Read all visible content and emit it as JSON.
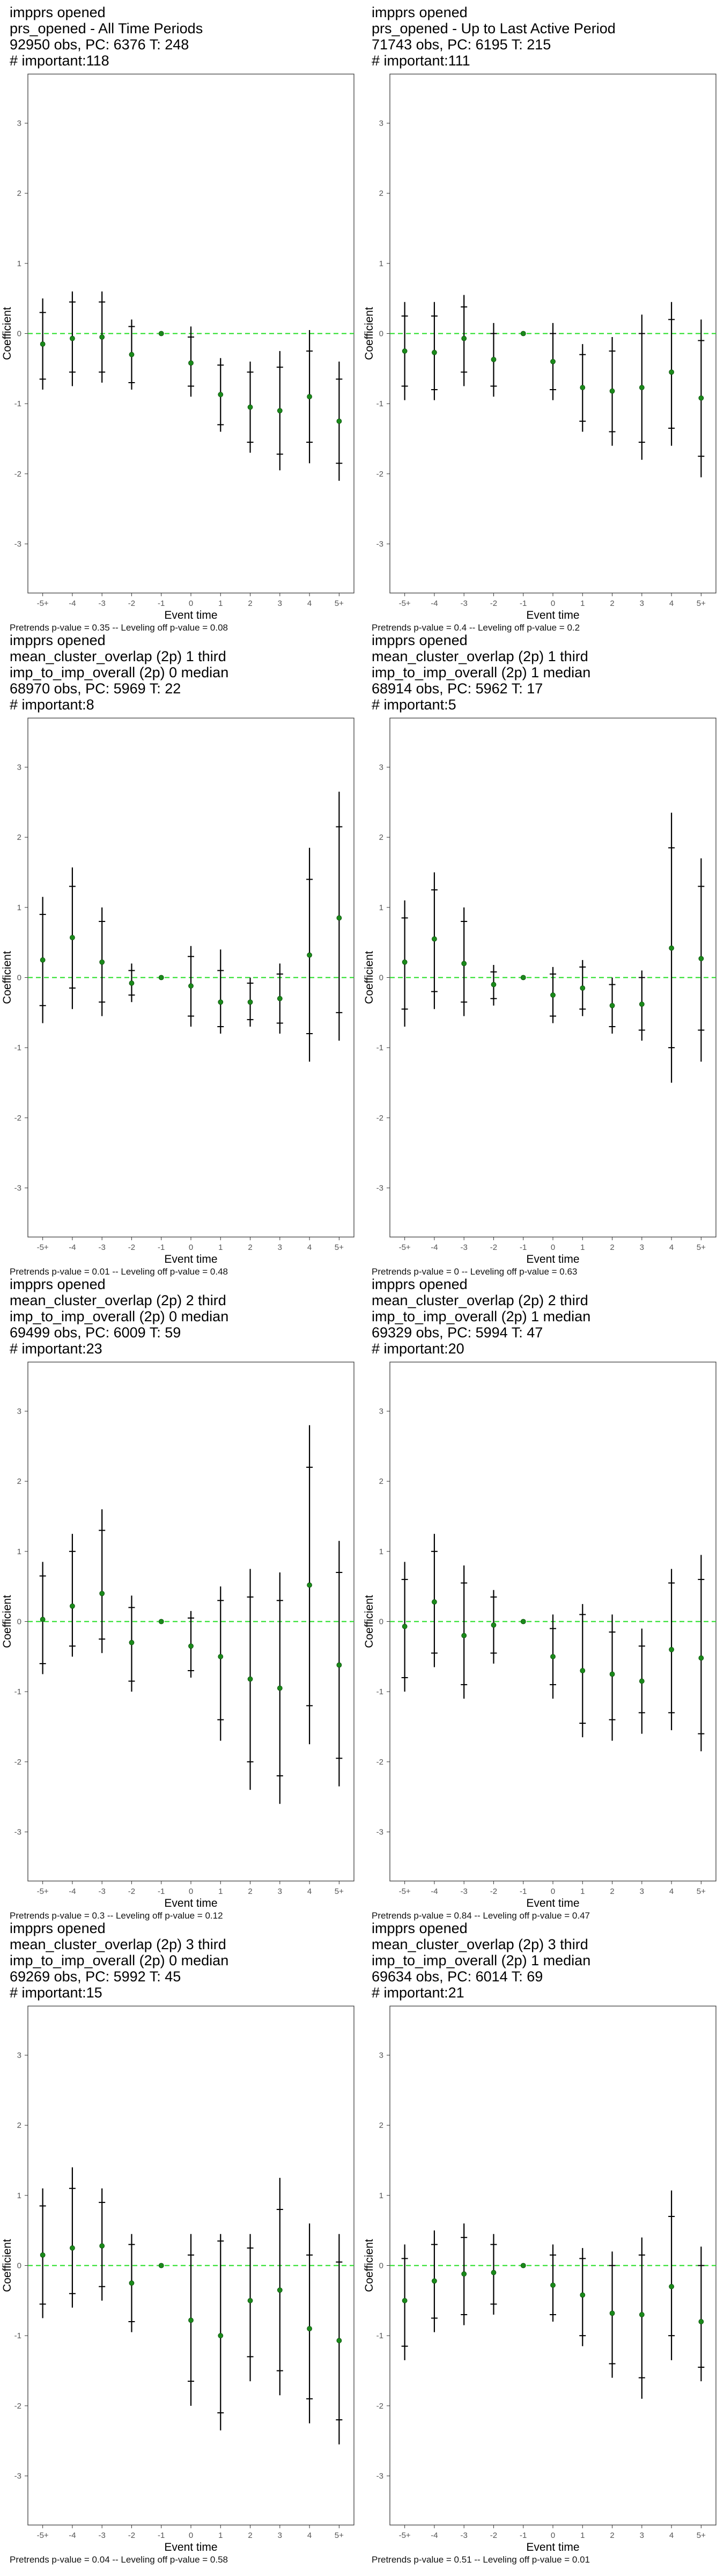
{
  "colors": {
    "point": "#1a8a1a",
    "zero_line": "#22dd22",
    "bar": "#000000",
    "frame": "#333333",
    "tick_text": "#555555"
  },
  "chart_data": [
    {
      "type": "scatter",
      "title": [
        "impprs opened",
        "prs_opened - All Time Periods",
        "92950 obs, PC: 6376 T: 248",
        "# important:118"
      ],
      "footer": "Pretrends p-value = 0.35 -- Leveling off p-value = 0.08",
      "xlabel": "Event time",
      "ylabel": "Coefficient",
      "categories": [
        "-5+",
        "-4",
        "-3",
        "-2",
        "-1",
        "0",
        "1",
        "2",
        "3",
        "4",
        "5+"
      ],
      "yticks": [
        "3",
        "2",
        "1",
        "0",
        "-1",
        "-2",
        "-3"
      ],
      "ylim": [
        -3.7,
        3.7
      ],
      "values": [
        -0.15,
        -0.07,
        -0.05,
        -0.3,
        0,
        -0.42,
        -0.87,
        -1.05,
        -1.1,
        -0.9,
        -1.25
      ],
      "ci95": [
        [
          -0.8,
          0.5
        ],
        [
          -0.75,
          0.6
        ],
        [
          -0.7,
          0.6
        ],
        [
          -0.8,
          0.2
        ],
        [
          0,
          0
        ],
        [
          -0.9,
          0.1
        ],
        [
          -1.4,
          -0.35
        ],
        [
          -1.7,
          -0.4
        ],
        [
          -1.95,
          -0.25
        ],
        [
          -1.85,
          0.05
        ],
        [
          -2.1,
          -0.4
        ]
      ],
      "ci90": [
        [
          -0.65,
          0.3
        ],
        [
          -0.55,
          0.45
        ],
        [
          -0.55,
          0.45
        ],
        [
          -0.7,
          0.1
        ],
        [
          0,
          0
        ],
        [
          -0.75,
          -0.05
        ],
        [
          -1.3,
          -0.45
        ],
        [
          -1.55,
          -0.55
        ],
        [
          -1.72,
          -0.48
        ],
        [
          -1.55,
          -0.25
        ],
        [
          -1.85,
          -0.65
        ]
      ]
    },
    {
      "type": "scatter",
      "title": [
        "impprs opened",
        "prs_opened - Up to Last Active Period",
        "71743 obs, PC: 6195 T: 215",
        "# important:111"
      ],
      "footer": "Pretrends p-value = 0.4 -- Leveling off p-value = 0.2",
      "xlabel": "Event time",
      "ylabel": "Coefficient",
      "categories": [
        "-5+",
        "-4",
        "-3",
        "-2",
        "-1",
        "0",
        "1",
        "2",
        "3",
        "4",
        "5+"
      ],
      "yticks": [
        "3",
        "2",
        "1",
        "0",
        "-1",
        "-2",
        "-3"
      ],
      "ylim": [
        -3.7,
        3.7
      ],
      "values": [
        -0.25,
        -0.27,
        -0.07,
        -0.37,
        0,
        -0.4,
        -0.77,
        -0.82,
        -0.77,
        -0.55,
        -0.92
      ],
      "ci95": [
        [
          -0.95,
          0.45
        ],
        [
          -0.95,
          0.45
        ],
        [
          -0.75,
          0.55
        ],
        [
          -0.9,
          0.15
        ],
        [
          0,
          0
        ],
        [
          -0.95,
          0.15
        ],
        [
          -1.4,
          -0.15
        ],
        [
          -1.6,
          -0.05
        ],
        [
          -1.8,
          0.27
        ],
        [
          -1.6,
          0.45
        ],
        [
          -2.05,
          0.2
        ]
      ],
      "ci90": [
        [
          -0.75,
          0.25
        ],
        [
          -0.8,
          0.25
        ],
        [
          -0.55,
          0.38
        ],
        [
          -0.75,
          0.0
        ],
        [
          0,
          0
        ],
        [
          -0.8,
          -0.0
        ],
        [
          -1.25,
          -0.3
        ],
        [
          -1.4,
          -0.25
        ],
        [
          -1.55,
          0.0
        ],
        [
          -1.35,
          0.2
        ],
        [
          -1.75,
          -0.1
        ]
      ]
    },
    {
      "type": "scatter",
      "title": [
        "impprs opened",
        "mean_cluster_overlap (2p) 1 third",
        "imp_to_imp_overall (2p) 0 median",
        "68970 obs, PC: 5969 T: 22",
        "# important:8"
      ],
      "footer": "Pretrends p-value = 0.01 -- Leveling off p-value = 0.48",
      "xlabel": "Event time",
      "ylabel": "Coefficient",
      "categories": [
        "-5+",
        "-4",
        "-3",
        "-2",
        "-1",
        "0",
        "1",
        "2",
        "3",
        "4",
        "5+"
      ],
      "yticks": [
        "3",
        "2",
        "1",
        "0",
        "-1",
        "-2",
        "-3"
      ],
      "ylim": [
        -3.7,
        3.7
      ],
      "values": [
        0.25,
        0.57,
        0.22,
        -0.08,
        0,
        -0.12,
        -0.35,
        -0.35,
        -0.3,
        0.32,
        0.85
      ],
      "ci95": [
        [
          -0.65,
          1.15
        ],
        [
          -0.45,
          1.57
        ],
        [
          -0.55,
          1.0
        ],
        [
          -0.35,
          0.2
        ],
        [
          0,
          0
        ],
        [
          -0.7,
          0.45
        ],
        [
          -0.8,
          0.4
        ],
        [
          -0.7,
          0.0
        ],
        [
          -0.8,
          0.2
        ],
        [
          -1.2,
          1.85
        ],
        [
          -0.9,
          2.65
        ]
      ],
      "ci90": [
        [
          -0.4,
          0.9
        ],
        [
          -0.15,
          1.3
        ],
        [
          -0.35,
          0.8
        ],
        [
          -0.25,
          0.1
        ],
        [
          0,
          0
        ],
        [
          -0.55,
          0.3
        ],
        [
          -0.7,
          0.1
        ],
        [
          -0.6,
          -0.08
        ],
        [
          -0.65,
          0.05
        ],
        [
          -0.8,
          1.4
        ],
        [
          -0.5,
          2.15
        ]
      ]
    },
    {
      "type": "scatter",
      "title": [
        "impprs opened",
        "mean_cluster_overlap (2p) 1 third",
        "imp_to_imp_overall (2p) 1 median",
        "68914 obs, PC: 5962 T: 17",
        "# important:5"
      ],
      "footer": "Pretrends p-value = 0 -- Leveling off p-value = 0.63",
      "xlabel": "Event time",
      "ylabel": "Coefficient",
      "categories": [
        "-5+",
        "-4",
        "-3",
        "-2",
        "-1",
        "0",
        "1",
        "2",
        "3",
        "4",
        "5+"
      ],
      "yticks": [
        "3",
        "2",
        "1",
        "0",
        "-1",
        "-2",
        "-3"
      ],
      "ylim": [
        -3.7,
        3.7
      ],
      "values": [
        0.22,
        0.55,
        0.2,
        -0.1,
        0,
        -0.25,
        -0.15,
        -0.4,
        -0.38,
        0.42,
        0.27
      ],
      "ci95": [
        [
          -0.7,
          1.1
        ],
        [
          -0.45,
          1.5
        ],
        [
          -0.55,
          1.0
        ],
        [
          -0.4,
          0.18
        ],
        [
          0,
          0
        ],
        [
          -0.65,
          0.15
        ],
        [
          -0.55,
          0.25
        ],
        [
          -0.8,
          0.0
        ],
        [
          -0.9,
          0.1
        ],
        [
          -1.5,
          2.35
        ],
        [
          -1.2,
          1.7
        ]
      ],
      "ci90": [
        [
          -0.45,
          0.85
        ],
        [
          -0.2,
          1.25
        ],
        [
          -0.35,
          0.8
        ],
        [
          -0.3,
          0.08
        ],
        [
          0,
          0
        ],
        [
          -0.55,
          0.05
        ],
        [
          -0.45,
          0.15
        ],
        [
          -0.7,
          -0.1
        ],
        [
          -0.75,
          -0.0
        ],
        [
          -1.0,
          1.85
        ],
        [
          -0.75,
          1.3
        ]
      ]
    },
    {
      "type": "scatter",
      "title": [
        "impprs opened",
        "mean_cluster_overlap (2p) 2 third",
        "imp_to_imp_overall (2p) 0 median",
        "69499 obs, PC: 6009 T: 59",
        "# important:23"
      ],
      "footer": "Pretrends p-value = 0.3 -- Leveling off p-value = 0.12",
      "xlabel": "Event time",
      "ylabel": "Coefficient",
      "categories": [
        "-5+",
        "-4",
        "-3",
        "-2",
        "-1",
        "0",
        "1",
        "2",
        "3",
        "4",
        "5+"
      ],
      "yticks": [
        "3",
        "2",
        "1",
        "0",
        "-1",
        "-2",
        "-3"
      ],
      "ylim": [
        -3.7,
        3.7
      ],
      "values": [
        0.03,
        0.22,
        0.4,
        -0.3,
        0,
        -0.35,
        -0.5,
        -0.82,
        -0.95,
        0.52,
        -0.62
      ],
      "ci95": [
        [
          -0.75,
          0.85
        ],
        [
          -0.5,
          1.25
        ],
        [
          -0.45,
          1.6
        ],
        [
          -1.0,
          0.37
        ],
        [
          0,
          0
        ],
        [
          -0.8,
          0.15
        ],
        [
          -1.7,
          0.5
        ],
        [
          -2.4,
          0.75
        ],
        [
          -2.6,
          0.7
        ],
        [
          -1.75,
          2.8
        ],
        [
          -2.35,
          1.15
        ]
      ],
      "ci90": [
        [
          -0.6,
          0.65
        ],
        [
          -0.35,
          1.0
        ],
        [
          -0.25,
          1.3
        ],
        [
          -0.85,
          0.2
        ],
        [
          0,
          0
        ],
        [
          -0.7,
          0.05
        ],
        [
          -1.4,
          0.3
        ],
        [
          -2.0,
          0.35
        ],
        [
          -2.2,
          0.3
        ],
        [
          -1.2,
          2.2
        ],
        [
          -1.95,
          0.7
        ]
      ]
    },
    {
      "type": "scatter",
      "title": [
        "impprs opened",
        "mean_cluster_overlap (2p) 2 third",
        "imp_to_imp_overall (2p) 1 median",
        "69329 obs, PC: 5994 T: 47",
        "# important:20"
      ],
      "footer": "Pretrends p-value = 0.84 -- Leveling off p-value = 0.47",
      "xlabel": "Event time",
      "ylabel": "Coefficient",
      "categories": [
        "-5+",
        "-4",
        "-3",
        "-2",
        "-1",
        "0",
        "1",
        "2",
        "3",
        "4",
        "5+"
      ],
      "yticks": [
        "3",
        "2",
        "1",
        "0",
        "-1",
        "-2",
        "-3"
      ],
      "ylim": [
        -3.7,
        3.7
      ],
      "values": [
        -0.07,
        0.28,
        -0.2,
        -0.05,
        0,
        -0.5,
        -0.7,
        -0.75,
        -0.85,
        -0.4,
        -0.52
      ],
      "ci95": [
        [
          -1.0,
          0.85
        ],
        [
          -0.65,
          1.25
        ],
        [
          -1.1,
          0.8
        ],
        [
          -0.6,
          0.45
        ],
        [
          0,
          0
        ],
        [
          -1.1,
          0.1
        ],
        [
          -1.65,
          0.25
        ],
        [
          -1.7,
          0.1
        ],
        [
          -1.6,
          -0.1
        ],
        [
          -1.55,
          0.75
        ],
        [
          -1.85,
          0.95
        ]
      ],
      "ci90": [
        [
          -0.8,
          0.6
        ],
        [
          -0.45,
          1.0
        ],
        [
          -0.9,
          0.55
        ],
        [
          -0.45,
          0.35
        ],
        [
          0,
          0
        ],
        [
          -0.9,
          -0.1
        ],
        [
          -1.45,
          0.1
        ],
        [
          -1.4,
          -0.15
        ],
        [
          -1.3,
          -0.35
        ],
        [
          -1.3,
          0.55
        ],
        [
          -1.6,
          0.6
        ]
      ]
    },
    {
      "type": "scatter",
      "title": [
        "impprs opened",
        "mean_cluster_overlap (2p) 3 third",
        "imp_to_imp_overall (2p) 0 median",
        "69269 obs, PC: 5992 T: 45",
        "# important:15"
      ],
      "footer": "Pretrends p-value = 0.04 -- Leveling off p-value = 0.58",
      "xlabel": "Event time",
      "ylabel": "Coefficient",
      "categories": [
        "-5+",
        "-4",
        "-3",
        "-2",
        "-1",
        "0",
        "1",
        "2",
        "3",
        "4",
        "5+"
      ],
      "yticks": [
        "3",
        "2",
        "1",
        "0",
        "-1",
        "-2",
        "-3"
      ],
      "ylim": [
        -3.7,
        3.7
      ],
      "values": [
        0.15,
        0.25,
        0.28,
        -0.25,
        0,
        -0.78,
        -1.0,
        -0.5,
        -0.35,
        -0.9,
        -1.07
      ],
      "ci95": [
        [
          -0.75,
          1.1
        ],
        [
          -0.6,
          1.4
        ],
        [
          -0.5,
          1.1
        ],
        [
          -0.95,
          0.45
        ],
        [
          0,
          0
        ],
        [
          -2.0,
          0.45
        ],
        [
          -2.35,
          0.45
        ],
        [
          -1.65,
          0.45
        ],
        [
          -1.85,
          1.25
        ],
        [
          -2.25,
          0.6
        ],
        [
          -2.55,
          0.45
        ]
      ],
      "ci90": [
        [
          -0.55,
          0.85
        ],
        [
          -0.4,
          1.1
        ],
        [
          -0.3,
          0.9
        ],
        [
          -0.8,
          0.3
        ],
        [
          0,
          0
        ],
        [
          -1.65,
          0.15
        ],
        [
          -2.1,
          0.35
        ],
        [
          -1.3,
          0.25
        ],
        [
          -1.5,
          0.8
        ],
        [
          -1.9,
          0.15
        ],
        [
          -2.2,
          0.05
        ]
      ]
    },
    {
      "type": "scatter",
      "title": [
        "impprs opened",
        "mean_cluster_overlap (2p) 3 third",
        "imp_to_imp_overall (2p) 1 median",
        "69634 obs, PC: 6014 T: 69",
        "# important:21"
      ],
      "footer": "Pretrends p-value = 0.51 -- Leveling off p-value = 0.01",
      "xlabel": "Event time",
      "ylabel": "Coefficient",
      "categories": [
        "-5+",
        "-4",
        "-3",
        "-2",
        "-1",
        "0",
        "1",
        "2",
        "3",
        "4",
        "5+"
      ],
      "yticks": [
        "3",
        "2",
        "1",
        "0",
        "-1",
        "-2",
        "-3"
      ],
      "ylim": [
        -3.7,
        3.7
      ],
      "values": [
        -0.5,
        -0.22,
        -0.12,
        -0.1,
        0,
        -0.28,
        -0.42,
        -0.68,
        -0.7,
        -0.3,
        -0.8
      ],
      "ci95": [
        [
          -1.35,
          0.3
        ],
        [
          -0.95,
          0.5
        ],
        [
          -0.85,
          0.6
        ],
        [
          -0.7,
          0.45
        ],
        [
          0,
          0
        ],
        [
          -0.8,
          0.3
        ],
        [
          -1.15,
          0.25
        ],
        [
          -1.6,
          0.2
        ],
        [
          -1.9,
          0.4
        ],
        [
          -1.35,
          1.07
        ],
        [
          -1.65,
          0.27
        ]
      ],
      "ci90": [
        [
          -1.15,
          0.1
        ],
        [
          -0.75,
          0.3
        ],
        [
          -0.7,
          0.4
        ],
        [
          -0.55,
          0.3
        ],
        [
          0,
          0
        ],
        [
          -0.7,
          0.15
        ],
        [
          -1.0,
          0.1
        ],
        [
          -1.4,
          -0.0
        ],
        [
          -1.6,
          0.15
        ],
        [
          -1.0,
          0.7
        ],
        [
          -1.45,
          0.0
        ]
      ]
    }
  ]
}
